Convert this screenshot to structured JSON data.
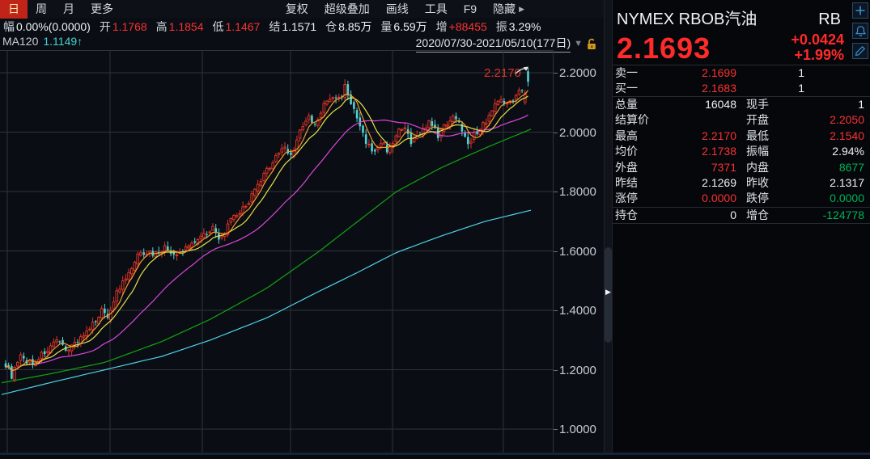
{
  "toolbar": {
    "tabs": [
      {
        "label": "日",
        "active": true
      },
      {
        "label": "周",
        "active": false
      },
      {
        "label": "月",
        "active": false
      },
      {
        "label": "更多",
        "active": false
      }
    ],
    "menu": [
      "复权",
      "超级叠加",
      "画线",
      "工具",
      "F9",
      "隐藏"
    ],
    "menu_arrow": "▶"
  },
  "info_bar": {
    "items": [
      {
        "label": "幅",
        "value": "0.00%(0.0000)",
        "color": "white"
      },
      {
        "label": "开",
        "value": "1.1768",
        "color": "red"
      },
      {
        "label": "高",
        "value": "1.1854",
        "color": "red"
      },
      {
        "label": "低",
        "value": "1.1467",
        "color": "red"
      },
      {
        "label": "结",
        "value": "1.1571",
        "color": "white"
      },
      {
        "label": "仓",
        "value": "8.85万",
        "color": "white"
      },
      {
        "label": "量",
        "value": "6.59万",
        "color": "white"
      },
      {
        "label": "增",
        "value": "+88455",
        "color": "red"
      },
      {
        "label": "振",
        "value": "3.29%",
        "color": "white"
      }
    ]
  },
  "chart_header": {
    "ma_label": "MA120",
    "ma_value": "1.1149",
    "ma_arrow": "↑",
    "range_label": "2020/07/30-2021/05/10(177日)",
    "range_caret": "▼"
  },
  "chart_data": {
    "type": "candlestick",
    "instrument": "NYMEX RBOB汽油",
    "code": "RB",
    "period": "日",
    "date_range": "2020/07/30-2021/05/10",
    "bars_in_range": 177,
    "visible_bars": 175,
    "annotation": {
      "text": "2.2170",
      "price": 2.217
    },
    "y_axis": {
      "ticks": [
        2.2,
        2.0,
        1.8,
        1.6,
        1.4,
        1.2,
        1.0
      ],
      "tick_labels": [
        "2.2000",
        "2.0000",
        "1.8000",
        "1.6000",
        "1.4000",
        "1.2000",
        "1.0000"
      ]
    },
    "x_gridlines": [
      9,
      136,
      250,
      359,
      485,
      622
    ],
    "close_anchors": [
      [
        0,
        1.22
      ],
      [
        2,
        1.18
      ],
      [
        5,
        1.24
      ],
      [
        9,
        1.22
      ],
      [
        13,
        1.26
      ],
      [
        17,
        1.29
      ],
      [
        21,
        1.27
      ],
      [
        25,
        1.31
      ],
      [
        28,
        1.33
      ],
      [
        30,
        1.37
      ],
      [
        32,
        1.4
      ],
      [
        34,
        1.38
      ],
      [
        37,
        1.46
      ],
      [
        41,
        1.52
      ],
      [
        45,
        1.6
      ],
      [
        49,
        1.59
      ],
      [
        53,
        1.61
      ],
      [
        57,
        1.58
      ],
      [
        61,
        1.62
      ],
      [
        65,
        1.65
      ],
      [
        69,
        1.68
      ],
      [
        71,
        1.63
      ],
      [
        75,
        1.7
      ],
      [
        79,
        1.74
      ],
      [
        83,
        1.8
      ],
      [
        87,
        1.87
      ],
      [
        90,
        1.92
      ],
      [
        93,
        1.95
      ],
      [
        95,
        1.92
      ],
      [
        98,
        2.0
      ],
      [
        101,
        2.05
      ],
      [
        103,
        2.02
      ],
      [
        106,
        2.09
      ],
      [
        109,
        2.12
      ],
      [
        111,
        2.11
      ],
      [
        113,
        2.155
      ],
      [
        115,
        2.1
      ],
      [
        117,
        2.04
      ],
      [
        119,
        1.99
      ],
      [
        121,
        1.95
      ],
      [
        123,
        1.93
      ],
      [
        125,
        1.97
      ],
      [
        127,
        1.94
      ],
      [
        129,
        1.97
      ],
      [
        131,
        2.0
      ],
      [
        133,
        2.01
      ],
      [
        135,
        1.96
      ],
      [
        138,
        2.0
      ],
      [
        141,
        2.03
      ],
      [
        144,
        1.99
      ],
      [
        147,
        2.03
      ],
      [
        149,
        2.06
      ],
      [
        152,
        2.01
      ],
      [
        154,
        1.97
      ],
      [
        157,
        2.0
      ],
      [
        160,
        2.04
      ],
      [
        163,
        2.09
      ],
      [
        165,
        2.12
      ],
      [
        167,
        2.09
      ],
      [
        169,
        2.11
      ],
      [
        171,
        2.15
      ],
      [
        173,
        2.1317
      ],
      [
        174,
        2.1693
      ]
    ],
    "last_bar": {
      "open": 2.205,
      "high": 2.217,
      "low": 2.154,
      "close": 2.1693
    },
    "prev_close": 2.1317,
    "ma60_anchors": [
      [
        0,
        1.155
      ],
      [
        60,
        1.185
      ],
      [
        130,
        1.225
      ],
      [
        200,
        1.295
      ],
      [
        260,
        1.37
      ],
      [
        330,
        1.475
      ],
      [
        395,
        1.6
      ],
      [
        440,
        1.695
      ],
      [
        490,
        1.8
      ],
      [
        545,
        1.88
      ],
      [
        600,
        1.947
      ],
      [
        656,
        2.01
      ]
    ],
    "ma120_anchors": [
      [
        0,
        1.115
      ],
      [
        60,
        1.155
      ],
      [
        130,
        1.2
      ],
      [
        200,
        1.245
      ],
      [
        260,
        1.3
      ],
      [
        330,
        1.375
      ],
      [
        395,
        1.465
      ],
      [
        440,
        1.525
      ],
      [
        490,
        1.595
      ],
      [
        545,
        1.65
      ],
      [
        600,
        1.7
      ],
      [
        656,
        1.737
      ]
    ],
    "colors": {
      "up": "#dd3226",
      "down": "#55d2d2",
      "ma5": "#f59b2d",
      "ma10": "#e3e14a",
      "ma30": "#dd44dd",
      "ma60": "#12a312",
      "ma120": "#4fd2e8",
      "grid": "#2e343c",
      "annotation": "#dd3226",
      "arrow": "#e8e8e8",
      "background": "#0a0e14"
    }
  },
  "quote_panel": {
    "title": "NYMEX RBOB汽油",
    "code": "RB",
    "price": "2.1693",
    "change": "+0.0424",
    "change_pct": "+1.99%",
    "icons": [
      "add",
      "alert-bell",
      "edit-pencil"
    ],
    "order_rows": [
      {
        "label": "卖一",
        "value": "2.1699",
        "value_color": "red",
        "qty": "1"
      },
      {
        "label": "买一",
        "value": "2.1683",
        "value_color": "red",
        "qty": "1"
      }
    ],
    "stat_rows": [
      [
        {
          "label": "总量",
          "value": "16048",
          "color": "white"
        },
        {
          "label": "现手",
          "value": "1",
          "color": "white"
        }
      ],
      [
        {
          "label": "结算价",
          "value": "",
          "color": "white"
        },
        {
          "label": "开盘",
          "value": "2.2050",
          "color": "red"
        }
      ],
      [
        {
          "label": "最高",
          "value": "2.2170",
          "color": "red"
        },
        {
          "label": "最低",
          "value": "2.1540",
          "color": "red"
        }
      ],
      [
        {
          "label": "均价",
          "value": "2.1738",
          "color": "red"
        },
        {
          "label": "振幅",
          "value": "2.94%",
          "color": "white"
        }
      ],
      [
        {
          "label": "外盘",
          "value": "7371",
          "color": "red"
        },
        {
          "label": "内盘",
          "value": "8677",
          "color": "green"
        }
      ],
      [
        {
          "label": "昨结",
          "value": "2.1269",
          "color": "white"
        },
        {
          "label": "昨收",
          "value": "2.1317",
          "color": "white"
        }
      ],
      [
        {
          "label": "涨停",
          "value": "0.0000",
          "color": "red"
        },
        {
          "label": "跌停",
          "value": "0.0000",
          "color": "green"
        }
      ]
    ],
    "position_row": [
      {
        "label": "持仓",
        "value": "0",
        "color": "white"
      },
      {
        "label": "增仓",
        "value": "-124778",
        "color": "green"
      }
    ]
  }
}
